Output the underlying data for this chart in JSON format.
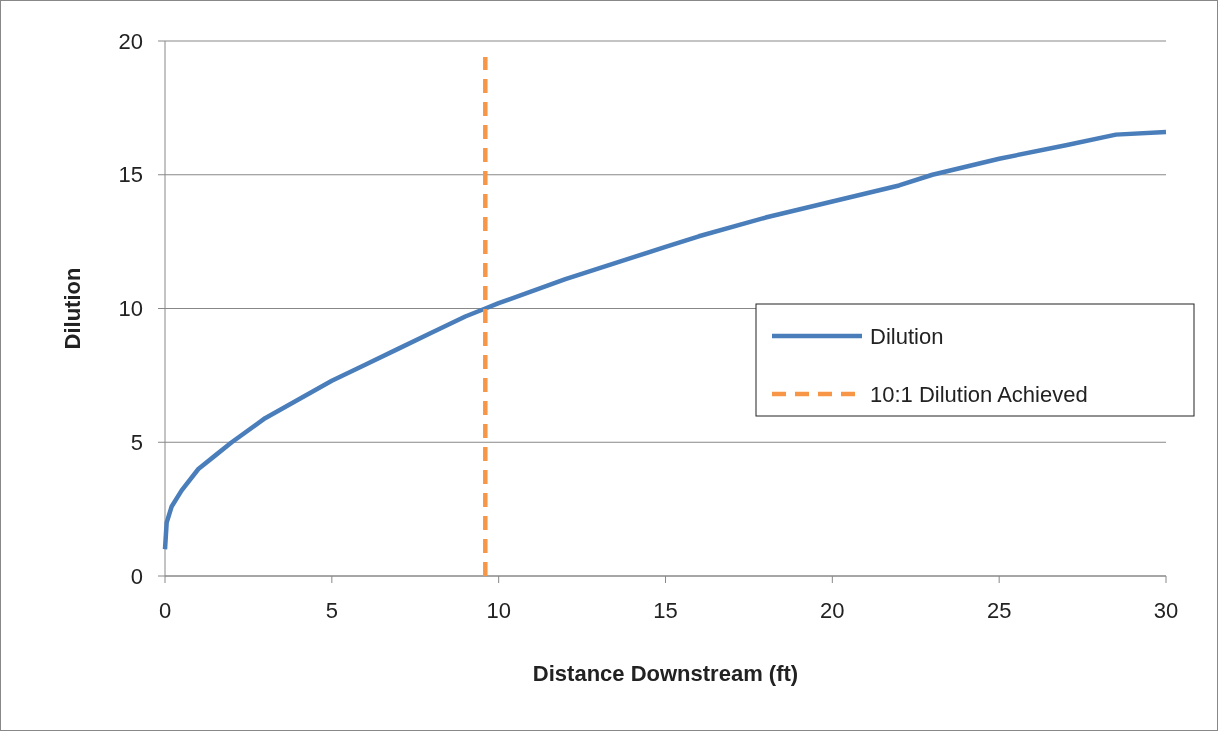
{
  "chart_data": {
    "type": "line",
    "xlabel": "Distance Downstream (ft)",
    "ylabel": "Dilution",
    "xlim": [
      0,
      30
    ],
    "xticks": [
      0,
      5,
      10,
      15,
      20,
      25,
      30
    ],
    "ylim": [
      0,
      20
    ],
    "yticks": [
      0,
      5,
      10,
      15,
      20
    ],
    "grid": "y",
    "legend": "right",
    "series": [
      {
        "name": "Dilution",
        "color": "#4a7ebb",
        "line_style": "solid",
        "x": [
          0,
          0.05,
          0.2,
          0.5,
          1,
          1.5,
          2,
          3,
          4,
          5,
          6,
          7,
          8,
          9,
          9.6,
          10,
          12,
          14,
          15,
          16,
          18,
          20,
          22,
          23,
          25,
          27,
          28.5,
          30
        ],
        "values": [
          1,
          2,
          2.6,
          3.2,
          4,
          4.5,
          5,
          5.9,
          6.6,
          7.3,
          7.9,
          8.5,
          9.1,
          9.7,
          10,
          10.2,
          11.1,
          11.9,
          12.3,
          12.7,
          13.4,
          14,
          14.6,
          15,
          15.6,
          16.1,
          16.5,
          16.6
        ]
      },
      {
        "name": "10:1 Dilution Achieved",
        "color": "#f79646",
        "line_style": "dashed",
        "x": [
          9.6,
          9.6
        ],
        "values": [
          0,
          19.4
        ]
      }
    ]
  }
}
